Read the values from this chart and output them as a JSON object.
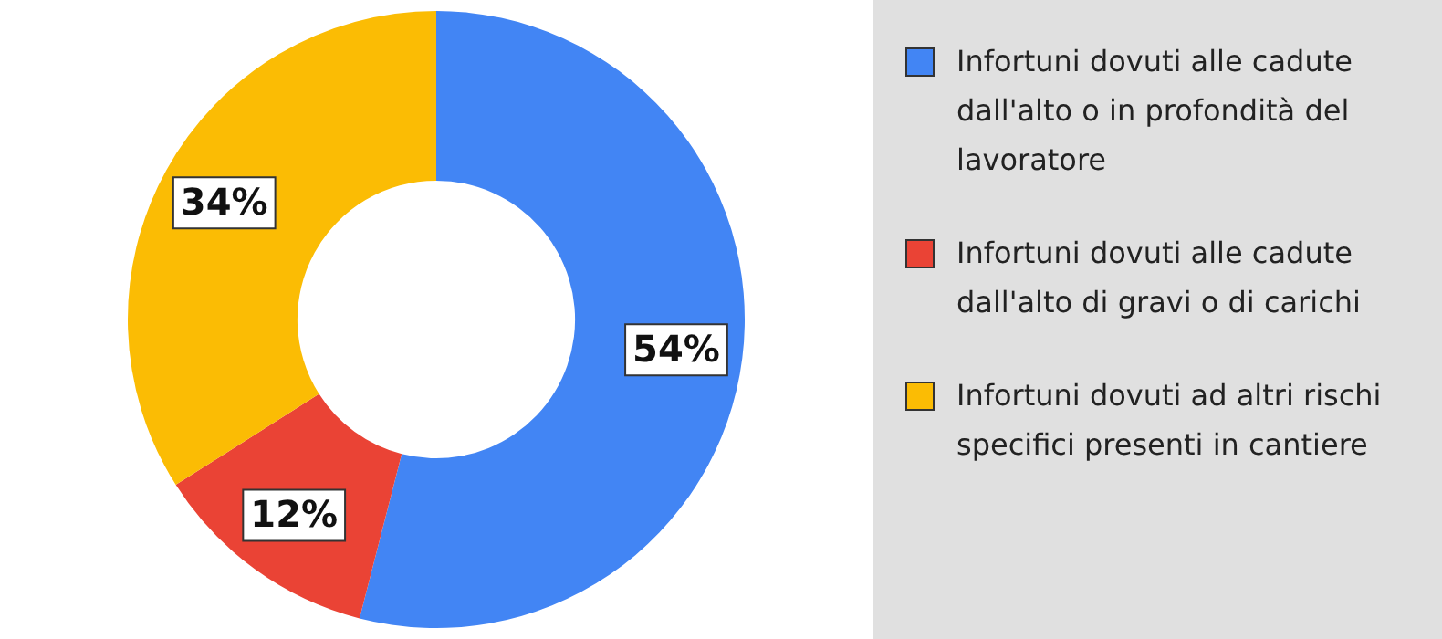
{
  "chart_data": {
    "type": "donut",
    "categories": [
      "Infortuni dovuti alle cadute dall'alto o in profondità del lavoratore",
      "Infortuni dovuti alle cadute dall'alto di gravi o di carichi",
      "Infortuni dovuti ad altri rischi specifici presenti in cantiere"
    ],
    "values": [
      54,
      12,
      34
    ],
    "value_labels": [
      "54%",
      "12%",
      "34%"
    ],
    "colors": [
      "#4285f4",
      "#ea4335",
      "#fbbc04"
    ],
    "legend": "right"
  }
}
